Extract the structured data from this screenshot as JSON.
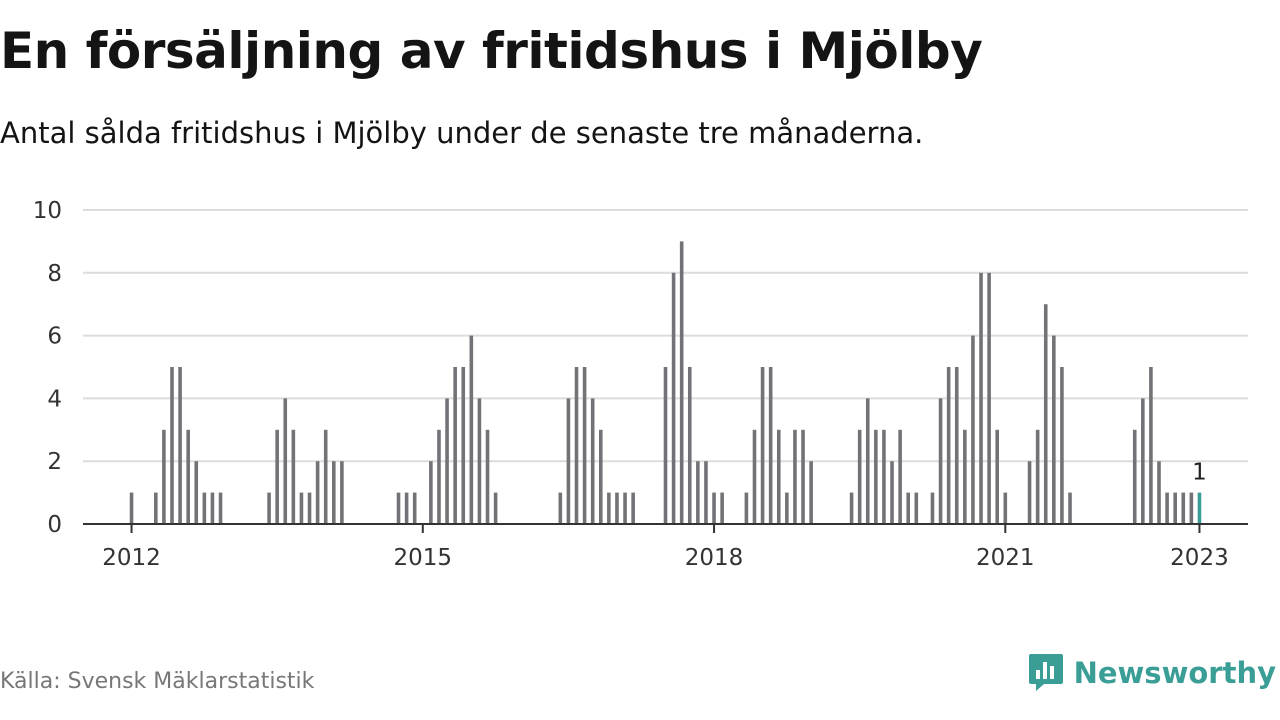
{
  "header": {
    "title": "En försäljning av fritidshus i Mjölby",
    "subtitle": "Antal sålda fritidshus i Mjölby under de senaste tre månaderna."
  },
  "footer": {
    "source": "Källa: Svensk Mäklarstatistik",
    "brand": "Newsworthy"
  },
  "colors": {
    "bar": "#737377",
    "highlight": "#3a9e97",
    "grid": "#dcdcdc",
    "axis": "#333333"
  },
  "icons": {
    "brand_logo": "newsworthy-logo-icon"
  },
  "chart_data": {
    "type": "bar",
    "title": "En försäljning av fritidshus i Mjölby",
    "subtitle": "Antal sålda fritidshus i Mjölby under de senaste tre månaderna.",
    "x_ticks": [
      "2012",
      "2015",
      "2018",
      "2021",
      "2023"
    ],
    "y_ticks": [
      "0",
      "2",
      "4",
      "6",
      "8",
      "10"
    ],
    "ylim": [
      0,
      10
    ],
    "xlim": [
      "2011-07",
      "2023-07"
    ],
    "grid": true,
    "legend": "none",
    "series": [
      {
        "x": [
          "2012-01",
          "2012-04",
          "2012-05",
          "2012-06",
          "2012-07",
          "2012-08",
          "2012-09",
          "2012-10",
          "2012-11",
          "2012-12",
          "2013-06",
          "2013-07",
          "2013-08",
          "2013-09",
          "2013-10",
          "2013-11",
          "2013-12",
          "2014-01",
          "2014-02",
          "2014-03",
          "2014-10",
          "2014-11",
          "2014-12",
          "2015-02",
          "2015-03",
          "2015-04",
          "2015-05",
          "2015-06",
          "2015-07",
          "2015-08",
          "2015-09",
          "2015-10",
          "2016-06",
          "2016-07",
          "2016-08",
          "2016-09",
          "2016-10",
          "2016-11",
          "2016-12",
          "2017-01",
          "2017-02",
          "2017-03",
          "2017-07",
          "2017-08",
          "2017-09",
          "2017-10",
          "2017-11",
          "2017-12",
          "2018-01",
          "2018-02",
          "2018-05",
          "2018-06",
          "2018-07",
          "2018-08",
          "2018-09",
          "2018-10",
          "2018-11",
          "2018-12",
          "2019-01",
          "2019-06",
          "2019-07",
          "2019-08",
          "2019-09",
          "2019-10",
          "2019-11",
          "2019-12",
          "2020-01",
          "2020-02",
          "2020-04",
          "2020-05",
          "2020-06",
          "2020-07",
          "2020-08",
          "2020-09",
          "2020-10",
          "2020-11",
          "2020-12",
          "2021-01",
          "2021-04",
          "2021-05",
          "2021-06",
          "2021-07",
          "2021-08",
          "2021-09",
          "2022-05",
          "2022-06",
          "2022-07",
          "2022-08",
          "2022-09",
          "2022-10",
          "2022-11",
          "2022-12"
        ],
        "values": [
          1,
          1,
          3,
          5,
          5,
          3,
          2,
          1,
          1,
          1,
          1,
          3,
          4,
          3,
          1,
          1,
          2,
          3,
          2,
          2,
          1,
          1,
          1,
          2,
          3,
          4,
          5,
          5,
          6,
          4,
          3,
          1,
          1,
          4,
          5,
          5,
          4,
          3,
          1,
          1,
          1,
          1,
          5,
          8,
          9,
          5,
          2,
          2,
          1,
          1,
          1,
          3,
          5,
          5,
          3,
          1,
          3,
          3,
          2,
          1,
          3,
          4,
          3,
          3,
          2,
          3,
          1,
          1,
          1,
          4,
          5,
          5,
          3,
          6,
          8,
          8,
          3,
          1,
          2,
          3,
          7,
          6,
          5,
          1,
          3,
          4,
          5,
          2,
          1,
          1,
          1,
          1
        ]
      }
    ],
    "highlight": {
      "x": "2023-01",
      "value": 1,
      "label": "1"
    }
  }
}
